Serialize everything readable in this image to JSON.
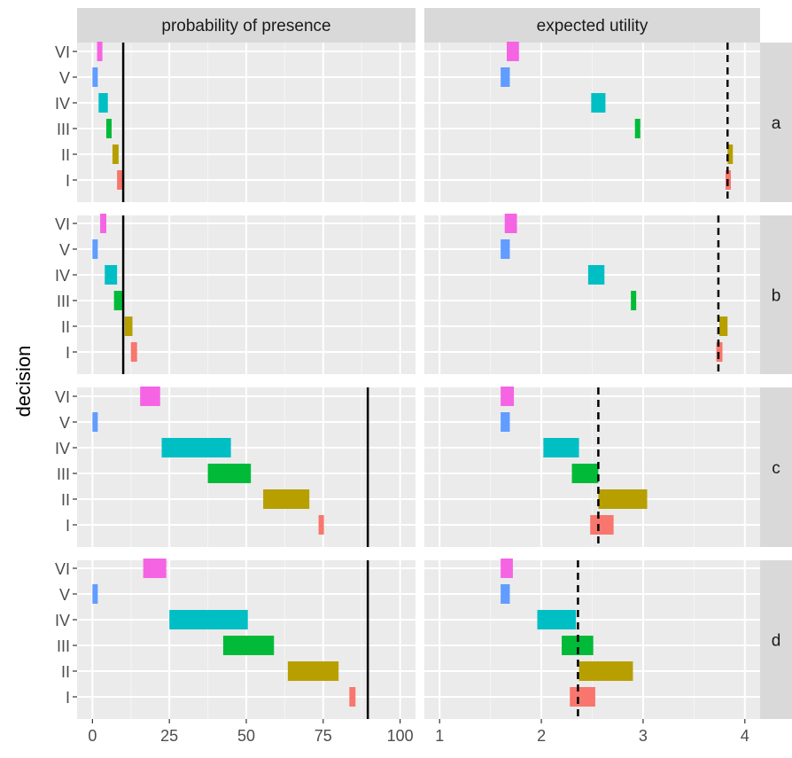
{
  "chart_data": {
    "type": "faceted-range-bar",
    "ylabel": "decision",
    "column_facets": [
      "probability of presence",
      "expected utility"
    ],
    "row_facets": [
      "a",
      "b",
      "c",
      "d"
    ],
    "categories": [
      "I",
      "II",
      "III",
      "IV",
      "V",
      "VI"
    ],
    "colors": {
      "I": "#F8766D",
      "II": "#B79F00",
      "III": "#00BA38",
      "IV": "#00BFC4",
      "V": "#619CFF",
      "VI": "#F564E3"
    },
    "x_axes": {
      "probability of presence": {
        "xlim": [
          0,
          100
        ],
        "ticks": [
          0,
          25,
          50,
          75,
          100
        ]
      },
      "expected utility": {
        "xlim": [
          1,
          4
        ],
        "ticks": [
          1,
          2,
          3,
          4
        ]
      }
    },
    "panels": [
      {
        "row": "a",
        "col": "probability of presence",
        "ranges": {
          "I": [
            8,
            9.5
          ],
          "II": [
            6.5,
            8.5
          ],
          "III": [
            4.5,
            6
          ],
          "IV": [
            2,
            5
          ],
          "V": [
            0,
            1
          ],
          "VI": [
            1.5,
            3
          ]
        },
        "ref_line": {
          "x": 10,
          "style": "solid"
        }
      },
      {
        "row": "a",
        "col": "expected utility",
        "ranges": {
          "I": [
            3.81,
            3.85
          ],
          "II": [
            3.83,
            3.88
          ],
          "III": [
            2.92,
            2.97
          ],
          "IV": [
            2.49,
            2.63
          ],
          "V": [
            1.6,
            1.69
          ],
          "VI": [
            1.66,
            1.78
          ]
        },
        "ref_line": {
          "x": 3.83,
          "style": "dashed"
        }
      },
      {
        "row": "b",
        "col": "probability of presence",
        "ranges": {
          "I": [
            12.5,
            14.5
          ],
          "II": [
            10.5,
            13
          ],
          "III": [
            7,
            10
          ],
          "IV": [
            4,
            8
          ],
          "V": [
            0,
            1
          ],
          "VI": [
            2.5,
            4.5
          ]
        },
        "ref_line": {
          "x": 10,
          "style": "solid"
        }
      },
      {
        "row": "b",
        "col": "expected utility",
        "ranges": {
          "I": [
            3.72,
            3.78
          ],
          "II": [
            3.75,
            3.83
          ],
          "III": [
            2.88,
            2.93
          ],
          "IV": [
            2.46,
            2.62
          ],
          "V": [
            1.6,
            1.69
          ],
          "VI": [
            1.64,
            1.76
          ]
        },
        "ref_line": {
          "x": 3.74,
          "style": "dashed"
        }
      },
      {
        "row": "c",
        "col": "probability of presence",
        "ranges": {
          "I": [
            73.5,
            75
          ],
          "II": [
            55.5,
            70.5
          ],
          "III": [
            37.5,
            51.5
          ],
          "IV": [
            22.5,
            45
          ],
          "V": [
            0,
            1
          ],
          "VI": [
            15.5,
            22
          ]
        },
        "ref_line": {
          "x": 89.5,
          "style": "solid"
        }
      },
      {
        "row": "c",
        "col": "expected utility",
        "ranges": {
          "I": [
            2.48,
            2.71
          ],
          "II": [
            2.56,
            3.04
          ],
          "III": [
            2.3,
            2.56
          ],
          "IV": [
            2.02,
            2.37
          ],
          "V": [
            1.6,
            1.69
          ],
          "VI": [
            1.6,
            1.73
          ]
        },
        "ref_line": {
          "x": 2.56,
          "style": "dashed"
        }
      },
      {
        "row": "d",
        "col": "probability of presence",
        "ranges": {
          "I": [
            83.5,
            85.5
          ],
          "II": [
            63.5,
            80
          ],
          "III": [
            42.5,
            59
          ],
          "IV": [
            25,
            50.5
          ],
          "V": [
            0,
            1
          ],
          "VI": [
            16.5,
            24
          ]
        },
        "ref_line": {
          "x": 89.5,
          "style": "solid"
        }
      },
      {
        "row": "d",
        "col": "expected utility",
        "ranges": {
          "I": [
            2.28,
            2.53
          ],
          "II": [
            2.37,
            2.9
          ],
          "III": [
            2.2,
            2.51
          ],
          "IV": [
            1.96,
            2.34
          ],
          "V": [
            1.6,
            1.69
          ],
          "VI": [
            1.6,
            1.72
          ]
        },
        "ref_line": {
          "x": 2.36,
          "style": "dashed"
        }
      }
    ]
  }
}
